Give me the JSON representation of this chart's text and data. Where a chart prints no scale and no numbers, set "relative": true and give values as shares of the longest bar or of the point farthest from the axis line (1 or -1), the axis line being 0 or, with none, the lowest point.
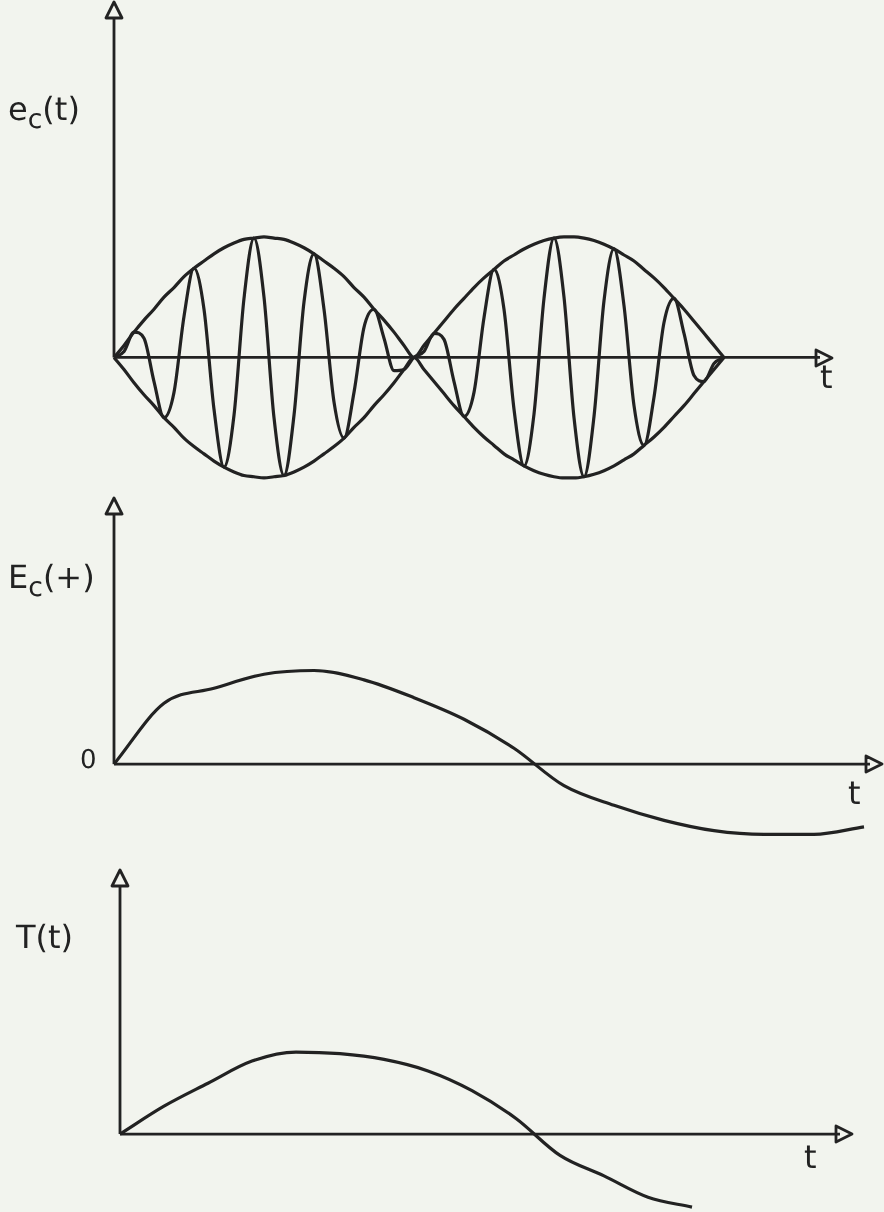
{
  "chart_data": [
    {
      "type": "line",
      "relative": true,
      "ylabel": "e$_{c}$(t)",
      "xlabel": "t",
      "marker": "none",
      "categories": [
        null,
        null,
        null,
        null,
        null,
        null,
        null,
        null,
        null,
        null,
        null,
        null,
        null,
        null,
        null,
        null,
        null,
        null,
        null,
        null,
        null,
        null,
        null,
        null,
        null,
        null,
        null,
        null,
        null,
        null,
        null,
        null,
        null,
        null,
        null,
        null,
        null,
        null,
        null,
        null,
        null,
        null,
        null,
        null,
        null,
        null,
        null,
        null,
        null,
        null,
        null,
        null,
        null,
        null,
        null,
        null,
        null,
        null,
        null,
        null,
        null,
        null,
        null,
        null,
        null,
        null,
        null,
        null,
        null,
        null
      ],
      "series": [
        {
          "color": "#222222",
          "values": [
            0,
            0.1,
            0.21,
            0.31,
            0.4,
            0.5,
            0.58,
            0.67,
            0.74,
            0.8,
            0.86,
            0.91,
            0.95,
            0.98,
            0.99,
            1,
            0.99,
            0.98,
            0.95,
            0.91,
            0.86,
            0.8,
            0.74,
            0.67,
            0.58,
            0.5,
            0.4,
            0.31,
            0.21,
            0.1,
            0,
            0.1,
            0.2,
            0.3,
            0.4,
            0.49,
            0.58,
            0.66,
            0.73,
            0.8,
            0.85,
            0.9,
            0.94,
            0.97,
            0.99,
            1,
            1,
            0.99,
            0.97,
            0.94,
            0.9,
            0.85,
            0.8,
            0.73,
            0.66,
            0.58,
            0.49,
            0.4,
            0.3,
            0.2,
            0.1,
            0,
            null,
            null,
            null,
            null,
            null,
            null,
            null,
            null
          ]
        },
        {
          "color": "#222222",
          "values": [
            0,
            -0.1,
            -0.21,
            -0.31,
            -0.4,
            -0.5,
            -0.58,
            -0.67,
            -0.74,
            -0.8,
            -0.86,
            -0.91,
            -0.95,
            -0.98,
            -0.99,
            -1,
            -0.99,
            -0.98,
            -0.95,
            -0.91,
            -0.86,
            -0.8,
            -0.74,
            -0.67,
            -0.58,
            -0.5,
            -0.4,
            -0.31,
            -0.21,
            -0.1,
            0,
            -0.1,
            -0.2,
            -0.3,
            -0.4,
            -0.49,
            -0.58,
            -0.66,
            -0.73,
            -0.8,
            -0.85,
            -0.9,
            -0.94,
            -0.97,
            -0.99,
            -1,
            -1,
            -0.99,
            -0.97,
            -0.94,
            -0.9,
            -0.85,
            -0.8,
            -0.73,
            -0.66,
            -0.58,
            -0.49,
            -0.4,
            -0.3,
            -0.2,
            -0.1,
            0,
            null,
            null,
            null,
            null,
            null,
            null,
            null,
            null
          ]
        },
        {
          "color": "#222222",
          "values": [
            0,
            0.05,
            0.21,
            0.16,
            -0.2,
            -0.5,
            -0.29,
            0.34,
            0.74,
            0.4,
            -0.43,
            -0.91,
            -0.48,
            0.49,
            0.99,
            0.5,
            -0.5,
            -0.98,
            -0.48,
            0.46,
            0.86,
            0.4,
            -0.37,
            -0.67,
            -0.29,
            0.25,
            0.4,
            0.16,
            -0.11,
            -0.1,
            0,
            0.05,
            0.2,
            0.15,
            -0.2,
            -0.49,
            -0.29,
            0.33,
            0.73,
            0.4,
            -0.43,
            -0.9,
            -0.47,
            0.49,
            0.99,
            0.5,
            -0.5,
            -0.99,
            -0.49,
            0.47,
            0.9,
            0.43,
            -0.4,
            -0.73,
            -0.33,
            0.29,
            0.49,
            0.2,
            -0.15,
            -0.2,
            -0.05,
            0,
            null,
            null,
            null,
            null,
            null,
            null,
            null,
            null
          ]
        }
      ]
    },
    {
      "type": "line",
      "relative": true,
      "ylabel": "E$_{c}$(+)",
      "xlabel": "t",
      "marker": "none",
      "annotations": [
        "0"
      ],
      "categories": [
        null,
        null,
        null,
        null,
        null,
        null,
        null,
        null,
        null,
        null,
        null,
        null,
        null,
        null,
        null,
        null
      ],
      "series": [
        {
          "color": "#222222",
          "values": [
            0,
            0.65,
            0.81,
            0.96,
            1,
            0.9,
            0.71,
            0.48,
            0.17,
            -0.23,
            -0.44,
            -0.6,
            -0.71,
            -0.75,
            -0.75,
            -0.67
          ]
        }
      ]
    },
    {
      "type": "line",
      "relative": true,
      "ylabel": "T(t)",
      "xlabel": "t",
      "marker": "none",
      "categories": [
        null,
        null,
        null,
        null,
        null,
        null,
        null,
        null,
        null,
        null,
        null,
        null,
        null,
        null,
        null,
        null,
        null
      ],
      "series": [
        {
          "color": "#222222",
          "values": [
            0,
            0.34,
            0.62,
            0.89,
            1,
            0.98,
            0.91,
            0.77,
            0.53,
            0.19,
            -0.26,
            -0.51,
            -0.77,
            -0.89,
            null,
            null,
            null
          ]
        }
      ]
    }
  ]
}
